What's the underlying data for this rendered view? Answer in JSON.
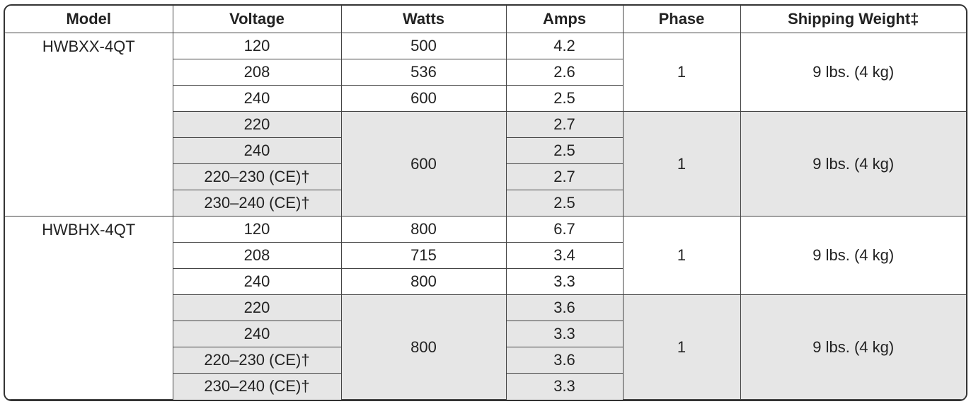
{
  "table": {
    "header": [
      "Model",
      "Voltage",
      "Watts",
      "Amps",
      "Phase",
      "Shipping Weight‡"
    ],
    "models": [
      {
        "model": "HWBXX-4QT",
        "groups": [
          {
            "shaded": false,
            "phase": "1",
            "weight": "9 lbs. (4 kg)",
            "rows": [
              {
                "voltage": "120",
                "watts": "500",
                "amps": "4.2"
              },
              {
                "voltage": "208",
                "watts": "536",
                "amps": "2.6"
              },
              {
                "voltage": "240",
                "watts": "600",
                "amps": "2.5"
              }
            ]
          },
          {
            "shaded": true,
            "phase": "1",
            "weight": "9 lbs. (4 kg)",
            "watts": "600",
            "rows": [
              {
                "voltage": "220",
                "amps": "2.7"
              },
              {
                "voltage": "240",
                "amps": "2.5"
              },
              {
                "voltage": "220–230 (CE)†",
                "amps": "2.7"
              },
              {
                "voltage": "230–240 (CE)†",
                "amps": "2.5"
              }
            ]
          }
        ]
      },
      {
        "model": "HWBHX-4QT",
        "groups": [
          {
            "shaded": false,
            "phase": "1",
            "weight": "9 lbs. (4 kg)",
            "rows": [
              {
                "voltage": "120",
                "watts": "800",
                "amps": "6.7"
              },
              {
                "voltage": "208",
                "watts": "715",
                "amps": "3.4"
              },
              {
                "voltage": "240",
                "watts": "800",
                "amps": "3.3"
              }
            ]
          },
          {
            "shaded": true,
            "phase": "1",
            "weight": "9 lbs. (4 kg)",
            "watts": "800",
            "rows": [
              {
                "voltage": "220",
                "amps": "3.6"
              },
              {
                "voltage": "240",
                "amps": "3.3"
              },
              {
                "voltage": "220–230 (CE)†",
                "amps": "3.6"
              },
              {
                "voltage": "230–240 (CE)†",
                "amps": "3.3"
              }
            ]
          }
        ]
      }
    ]
  }
}
